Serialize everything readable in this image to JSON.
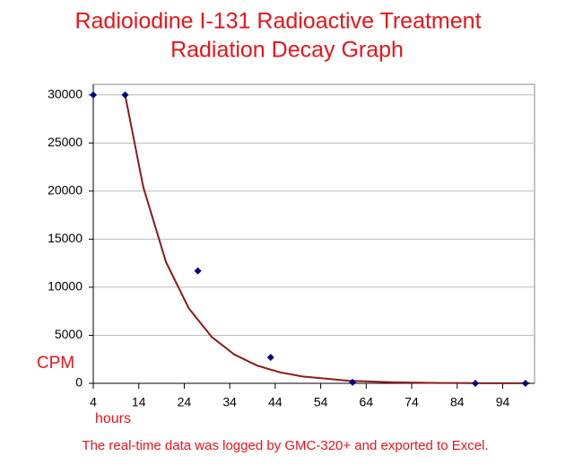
{
  "chart_data": {
    "type": "scatter",
    "title_lines": [
      "Radioiodine I-131 Radioactive Treatment",
      "Radiation Decay Graph"
    ],
    "y_label": "CPM",
    "x_label": "hours",
    "footnote": "The real-time data was logged by GMC-320+ and exported to Excel.",
    "x": [
      4,
      11,
      27,
      43,
      61,
      88,
      99
    ],
    "values": [
      30000,
      30000,
      11700,
      2700,
      100,
      0,
      0
    ],
    "color": "#000080",
    "trendline": {
      "color": "#8b1a1a",
      "x": [
        11,
        15,
        20,
        25,
        30,
        35,
        40,
        45,
        50,
        60,
        70,
        80,
        90,
        100
      ],
      "values": [
        30000,
        20400,
        12600,
        7800,
        4840,
        3000,
        1850,
        1150,
        710,
        270,
        100,
        40,
        15,
        6
      ]
    },
    "xlim": [
      4,
      101
    ],
    "ylim": [
      0,
      31100
    ],
    "xticks": [
      4,
      14,
      24,
      34,
      44,
      54,
      64,
      74,
      84,
      94
    ],
    "yticks": [
      0,
      5000,
      10000,
      15000,
      20000,
      25000,
      30000
    ],
    "grid": true
  }
}
